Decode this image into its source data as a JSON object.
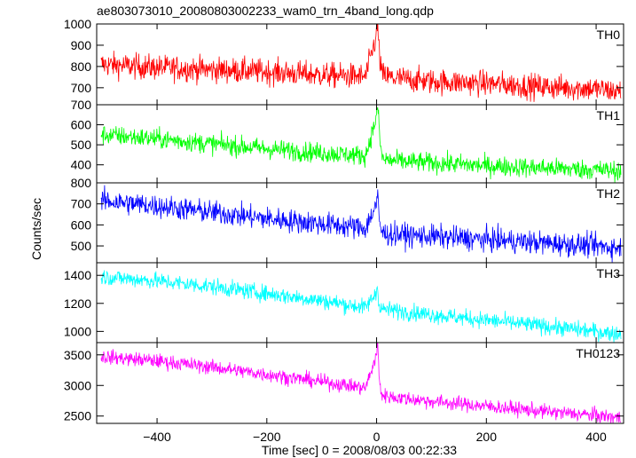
{
  "chart_data": {
    "type": "line",
    "title": "ae803073010_20080803002233_wam0_trn_4band_long.qdp",
    "xlabel": "Time [sec] 0 = 2008/08/03 00:22:33",
    "ylabel": "Counts/sec",
    "xlim": [
      -510,
      450
    ],
    "x_ticks": [
      -400,
      -200,
      0,
      200,
      400
    ],
    "grid": false,
    "panels": [
      {
        "name": "TH0",
        "color": "#ff0000",
        "ylim": [
          620,
          1000
        ],
        "y_ticks": [
          700,
          800,
          900,
          1000
        ],
        "x": [
          -500,
          -400,
          -300,
          -200,
          -100,
          -20,
          0,
          2,
          5,
          10,
          30,
          100,
          200,
          300,
          400,
          445
        ],
        "y": [
          810,
          795,
          785,
          775,
          760,
          752,
          950,
          1000,
          850,
          760,
          745,
          730,
          720,
          705,
          695,
          680
        ],
        "noise": 30
      },
      {
        "name": "TH1",
        "color": "#00ff00",
        "ylim": [
          310,
          700
        ],
        "y_ticks": [
          400,
          500,
          600,
          700
        ],
        "x": [
          -500,
          -400,
          -300,
          -200,
          -100,
          -20,
          0,
          2,
          5,
          10,
          30,
          100,
          200,
          300,
          400,
          445
        ],
        "y": [
          550,
          530,
          505,
          480,
          460,
          445,
          640,
          700,
          560,
          430,
          420,
          410,
          395,
          385,
          375,
          370
        ],
        "noise": 25
      },
      {
        "name": "TH2",
        "color": "#0000ff",
        "ylim": [
          420,
          800
        ],
        "y_ticks": [
          500,
          600,
          700,
          800
        ],
        "x": [
          -500,
          -400,
          -300,
          -200,
          -100,
          -20,
          0,
          2,
          5,
          10,
          30,
          100,
          200,
          300,
          400,
          445
        ],
        "y": [
          715,
          690,
          660,
          630,
          605,
          585,
          700,
          730,
          620,
          560,
          555,
          545,
          530,
          515,
          500,
          490
        ],
        "noise": 28
      },
      {
        "name": "TH3",
        "color": "#00ffff",
        "ylim": [
          920,
          1490
        ],
        "y_ticks": [
          1000,
          1200,
          1400
        ],
        "x": [
          -500,
          -400,
          -300,
          -200,
          -100,
          -20,
          0,
          2,
          5,
          10,
          30,
          100,
          200,
          300,
          400,
          445
        ],
        "y": [
          1390,
          1360,
          1320,
          1270,
          1220,
          1170,
          1280,
          1320,
          1180,
          1160,
          1150,
          1120,
          1080,
          1040,
          1000,
          980
        ],
        "noise": 30
      },
      {
        "name": "TH0123",
        "color": "#ff00ff",
        "ylim": [
          2380,
          3700
        ],
        "y_ticks": [
          2500,
          3000,
          3500
        ],
        "x": [
          -500,
          -400,
          -300,
          -200,
          -100,
          -20,
          0,
          2,
          5,
          10,
          30,
          100,
          200,
          300,
          400,
          445
        ],
        "y": [
          3470,
          3400,
          3300,
          3180,
          3060,
          2960,
          3500,
          3700,
          3050,
          2840,
          2810,
          2740,
          2660,
          2580,
          2510,
          2470
        ],
        "noise": 60
      }
    ]
  }
}
